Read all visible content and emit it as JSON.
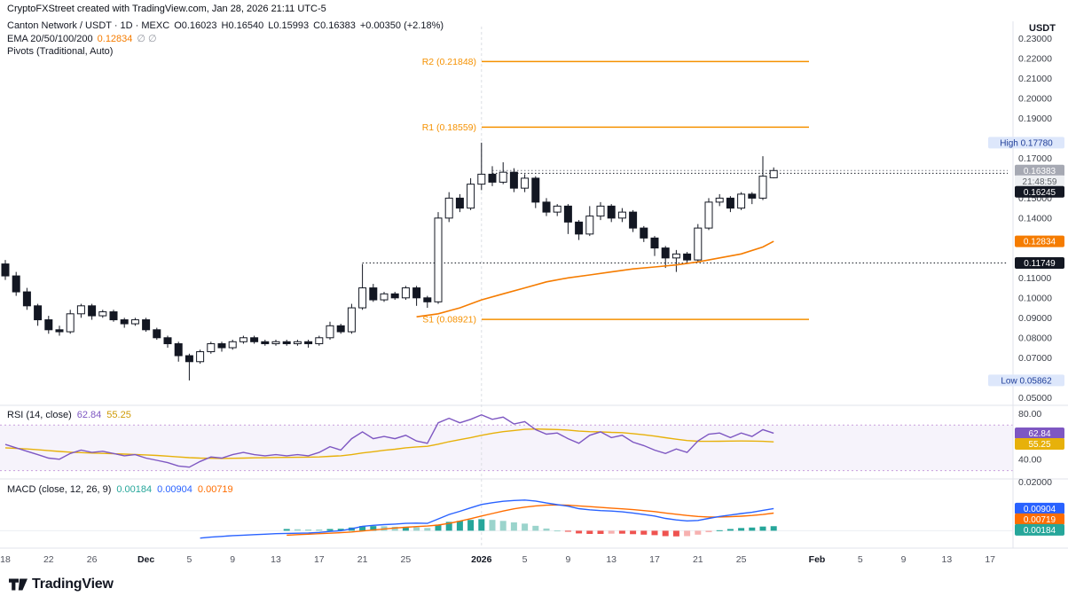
{
  "attribution": "CryptoFXStreet created with TradingView.com, Jan 28, 2026 21:11 UTC-5",
  "logo_text": "TradingView",
  "legend": {
    "symbol": "Canton Network / USDT · 1D · MEXC",
    "ohlc_o": "O0.16023",
    "ohlc_h": "H0.16540",
    "ohlc_l": "L0.15993",
    "ohlc_c": "C0.16383",
    "change": "+0.00350 (+2.18%)",
    "ema_label": "EMA 20/50/100/200",
    "ema_value": "0.12834",
    "ema_empty": "∅ ∅",
    "pivots_label": "Pivots (Traditional, Auto)",
    "rsi_label": "RSI (14, close)",
    "rsi_v1": "62.84",
    "rsi_v2": "55.25",
    "macd_label": "MACD (close, 12, 26, 9)",
    "macd_v1": "0.00184",
    "macd_v2": "0.00904",
    "macd_v3": "0.00719"
  },
  "axis": {
    "currency": "USDT",
    "price_ticks": [
      0.23,
      0.22,
      0.21,
      0.2,
      0.19,
      0.17,
      0.15,
      0.14,
      0.11,
      0.1,
      0.09,
      0.08,
      0.07,
      0.05
    ],
    "rsi_ticks": [
      80,
      40
    ],
    "macd_ticks": [
      0.02
    ],
    "main_badges": [
      {
        "kind": "range",
        "text": "High 0.17780",
        "price": 0.1778
      },
      {
        "kind": "last",
        "text": "0.16383",
        "price": 0.16383
      },
      {
        "kind": "countdown",
        "text": "21:48:59"
      },
      {
        "kind": "line",
        "text": "0.16245",
        "price": 0.16245
      },
      {
        "kind": "ema",
        "text": "0.12834",
        "price": 0.12834
      },
      {
        "kind": "line",
        "text": "0.11749",
        "price": 0.11749
      },
      {
        "kind": "range",
        "text": "Low 0.05862",
        "price": 0.05862
      }
    ],
    "rsi_badges": [
      {
        "text": "62.84",
        "value": 62.84,
        "color": "#7e57c2"
      },
      {
        "text": "55.25",
        "value": 55.25,
        "color": "#e7b10a"
      }
    ],
    "macd_badges": [
      {
        "text": "0.00904",
        "value": 0.00904,
        "color": "#2962ff"
      },
      {
        "text": "0.00719",
        "value": 0.00719,
        "color": "#ff6d00"
      },
      {
        "text": "0.00184",
        "value": 0.00184,
        "color": "#26a69a"
      }
    ],
    "time_ticks": [
      {
        "i": 0,
        "label": "18"
      },
      {
        "i": 4,
        "label": "22"
      },
      {
        "i": 8,
        "label": "26"
      },
      {
        "i": 13,
        "label": "Dec",
        "bold": true
      },
      {
        "i": 17,
        "label": "5"
      },
      {
        "i": 21,
        "label": "9"
      },
      {
        "i": 25,
        "label": "13"
      },
      {
        "i": 29,
        "label": "17"
      },
      {
        "i": 33,
        "label": "21"
      },
      {
        "i": 37,
        "label": "25"
      },
      {
        "i": 44,
        "label": "2026",
        "bold": true
      },
      {
        "i": 48,
        "label": "5"
      },
      {
        "i": 52,
        "label": "9"
      },
      {
        "i": 56,
        "label": "13"
      },
      {
        "i": 60,
        "label": "17"
      },
      {
        "i": 64,
        "label": "21"
      },
      {
        "i": 68,
        "label": "25"
      },
      {
        "i": 75,
        "label": "Feb",
        "bold": true
      },
      {
        "i": 79,
        "label": "5"
      },
      {
        "i": 83,
        "label": "9"
      },
      {
        "i": 87,
        "label": "13"
      },
      {
        "i": 91,
        "label": "17"
      }
    ]
  },
  "chart_data": {
    "type": "candlestick",
    "symbol": "Canton Network / USDT",
    "interval": "1D",
    "exchange": "MEXC",
    "last": {
      "open": 0.16023,
      "high": 0.1654,
      "low": 0.15993,
      "close": 0.16383,
      "change_abs": 0.0035,
      "change_pct": 2.18
    },
    "window": {
      "high": 0.1778,
      "low": 0.05862
    },
    "countdown": "21:48:59",
    "panes": {
      "main": {
        "range": [
          0.047,
          0.236
        ]
      },
      "rsi": {
        "range": [
          25,
          85
        ],
        "levels": [
          70,
          30
        ]
      },
      "macd": {
        "range": [
          -0.006,
          0.02
        ]
      }
    },
    "candles": [
      [
        0.117,
        0.119,
        0.109,
        0.111
      ],
      [
        0.111,
        0.113,
        0.101,
        0.103
      ],
      [
        0.103,
        0.105,
        0.094,
        0.096
      ],
      [
        0.096,
        0.097,
        0.086,
        0.089
      ],
      [
        0.089,
        0.091,
        0.082,
        0.084
      ],
      [
        0.084,
        0.086,
        0.081,
        0.083
      ],
      [
        0.083,
        0.094,
        0.082,
        0.092
      ],
      [
        0.092,
        0.097,
        0.09,
        0.096
      ],
      [
        0.096,
        0.097,
        0.089,
        0.091
      ],
      [
        0.091,
        0.094,
        0.09,
        0.093
      ],
      [
        0.093,
        0.094,
        0.088,
        0.089
      ],
      [
        0.089,
        0.09,
        0.085,
        0.087
      ],
      [
        0.087,
        0.09,
        0.086,
        0.089
      ],
      [
        0.089,
        0.09,
        0.083,
        0.084
      ],
      [
        0.084,
        0.085,
        0.079,
        0.08
      ],
      [
        0.08,
        0.081,
        0.075,
        0.077
      ],
      [
        0.077,
        0.078,
        0.068,
        0.071
      ],
      [
        0.071,
        0.072,
        0.0586,
        0.068
      ],
      [
        0.068,
        0.074,
        0.067,
        0.073
      ],
      [
        0.073,
        0.078,
        0.072,
        0.077
      ],
      [
        0.077,
        0.078,
        0.073,
        0.075
      ],
      [
        0.075,
        0.079,
        0.074,
        0.078
      ],
      [
        0.078,
        0.081,
        0.077,
        0.08
      ],
      [
        0.08,
        0.081,
        0.077,
        0.078
      ],
      [
        0.078,
        0.079,
        0.076,
        0.077
      ],
      [
        0.077,
        0.079,
        0.076,
        0.078
      ],
      [
        0.078,
        0.079,
        0.076,
        0.077
      ],
      [
        0.077,
        0.079,
        0.076,
        0.078
      ],
      [
        0.078,
        0.079,
        0.075,
        0.077
      ],
      [
        0.077,
        0.081,
        0.076,
        0.08
      ],
      [
        0.08,
        0.088,
        0.079,
        0.086
      ],
      [
        0.086,
        0.087,
        0.082,
        0.083
      ],
      [
        0.083,
        0.097,
        0.082,
        0.095
      ],
      [
        0.095,
        0.117,
        0.094,
        0.105
      ],
      [
        0.105,
        0.107,
        0.098,
        0.099
      ],
      [
        0.099,
        0.103,
        0.098,
        0.102
      ],
      [
        0.102,
        0.103,
        0.099,
        0.1
      ],
      [
        0.1,
        0.106,
        0.099,
        0.105
      ],
      [
        0.105,
        0.106,
        0.096,
        0.1
      ],
      [
        0.1,
        0.101,
        0.095,
        0.098
      ],
      [
        0.098,
        0.143,
        0.097,
        0.14
      ],
      [
        0.14,
        0.153,
        0.138,
        0.15
      ],
      [
        0.15,
        0.152,
        0.143,
        0.145
      ],
      [
        0.145,
        0.16,
        0.144,
        0.157
      ],
      [
        0.157,
        0.1778,
        0.154,
        0.162
      ],
      [
        0.162,
        0.166,
        0.156,
        0.158
      ],
      [
        0.158,
        0.168,
        0.157,
        0.163
      ],
      [
        0.163,
        0.165,
        0.153,
        0.155
      ],
      [
        0.155,
        0.162,
        0.153,
        0.16
      ],
      [
        0.16,
        0.161,
        0.145,
        0.148
      ],
      [
        0.148,
        0.15,
        0.141,
        0.143
      ],
      [
        0.143,
        0.147,
        0.141,
        0.146
      ],
      [
        0.146,
        0.147,
        0.132,
        0.138
      ],
      [
        0.138,
        0.139,
        0.129,
        0.132
      ],
      [
        0.132,
        0.146,
        0.131,
        0.141
      ],
      [
        0.141,
        0.148,
        0.139,
        0.146
      ],
      [
        0.146,
        0.147,
        0.138,
        0.14
      ],
      [
        0.14,
        0.145,
        0.138,
        0.143
      ],
      [
        0.143,
        0.144,
        0.133,
        0.135
      ],
      [
        0.135,
        0.136,
        0.128,
        0.13
      ],
      [
        0.13,
        0.131,
        0.121,
        0.125
      ],
      [
        0.125,
        0.126,
        0.115,
        0.12
      ],
      [
        0.12,
        0.124,
        0.113,
        0.122
      ],
      [
        0.122,
        0.123,
        0.117,
        0.119
      ],
      [
        0.119,
        0.137,
        0.118,
        0.135
      ],
      [
        0.135,
        0.15,
        0.134,
        0.148
      ],
      [
        0.148,
        0.152,
        0.146,
        0.15
      ],
      [
        0.15,
        0.151,
        0.143,
        0.145
      ],
      [
        0.145,
        0.153,
        0.144,
        0.152
      ],
      [
        0.152,
        0.153,
        0.147,
        0.15
      ],
      [
        0.15,
        0.171,
        0.149,
        0.161
      ],
      [
        0.16023,
        0.1654,
        0.15993,
        0.16383
      ]
    ],
    "ema_points": [
      [
        38,
        0.0905
      ],
      [
        40,
        0.092
      ],
      [
        42,
        0.095
      ],
      [
        44,
        0.099
      ],
      [
        46,
        0.102
      ],
      [
        48,
        0.105
      ],
      [
        50,
        0.108
      ],
      [
        52,
        0.11
      ],
      [
        54,
        0.1115
      ],
      [
        56,
        0.113
      ],
      [
        58,
        0.1145
      ],
      [
        60,
        0.1155
      ],
      [
        62,
        0.1165
      ],
      [
        64,
        0.118
      ],
      [
        66,
        0.12
      ],
      [
        68,
        0.122
      ],
      [
        70,
        0.1255
      ],
      [
        71,
        0.12834
      ]
    ],
    "ema_last": 0.12834,
    "pivots": [
      {
        "label": "R2 (0.21848)",
        "value": 0.21848
      },
      {
        "label": "R1 (0.18559)",
        "value": 0.18559
      },
      {
        "label": "S1 (0.08921)",
        "value": 0.08921
      }
    ],
    "price_lines": [
      {
        "value": 0.16383,
        "from": 45,
        "color": "#787b86"
      },
      {
        "value": 0.16245,
        "from": 45,
        "color": "#131722"
      },
      {
        "value": 0.11749,
        "from": 33,
        "color": "#131722"
      }
    ],
    "rsi": {
      "last": 62.84,
      "ma_last": 55.25,
      "values": [
        53,
        50,
        47,
        44,
        41,
        40,
        45,
        48,
        46,
        47,
        45,
        43,
        44,
        41,
        39,
        37,
        34,
        33,
        38,
        42,
        41,
        44,
        46,
        44,
        43,
        44,
        43,
        44,
        43,
        46,
        51,
        48,
        58,
        64,
        58,
        60,
        58,
        61,
        56,
        54,
        72,
        76,
        72,
        75,
        79,
        75,
        77,
        71,
        73,
        66,
        62,
        63,
        58,
        54,
        61,
        64,
        59,
        61,
        55,
        52,
        48,
        45,
        49,
        46,
        56,
        62,
        63,
        59,
        63,
        60,
        66,
        62.84
      ],
      "ma": [
        50,
        49.5,
        49,
        48.3,
        47.5,
        46.8,
        46.2,
        45.8,
        45.4,
        45.1,
        44.8,
        44.5,
        44.2,
        43.8,
        43.3,
        42.7,
        42,
        41.4,
        41,
        40.8,
        40.7,
        40.8,
        41,
        41.2,
        41.3,
        41.5,
        41.6,
        41.7,
        41.8,
        42,
        42.5,
        43,
        44,
        45.5,
        46.6,
        47.8,
        48.8,
        50,
        50.8,
        51.3,
        53.2,
        55.4,
        57.2,
        59,
        61,
        62.7,
        64.2,
        65.2,
        66.2,
        66.5,
        66.3,
        66.1,
        65.6,
        64.7,
        64.2,
        64,
        63.6,
        63.3,
        62.5,
        61.5,
        60.3,
        58.9,
        57.6,
        56.4,
        55.8,
        55.7,
        55.8,
        55.9,
        56,
        55.9,
        55.7,
        55.25
      ]
    },
    "macd": {
      "last_hist": 0.00184,
      "last_line": 0.00904,
      "last_signal": 0.00719,
      "line": [
        null,
        null,
        null,
        null,
        null,
        null,
        null,
        null,
        null,
        null,
        null,
        null,
        null,
        null,
        null,
        null,
        null,
        null,
        -0.003,
        -0.0026,
        -0.0023,
        -0.002,
        -0.0018,
        -0.0016,
        -0.0014,
        -0.0012,
        -0.0011,
        -0.001,
        -0.0009,
        -0.0007,
        -0.0003,
        0.0,
        0.0008,
        0.0018,
        0.0022,
        0.0025,
        0.0027,
        0.003,
        0.0031,
        0.003,
        0.0048,
        0.0066,
        0.0079,
        0.0093,
        0.0107,
        0.0114,
        0.012,
        0.0123,
        0.0125,
        0.0121,
        0.0113,
        0.0106,
        0.01,
        0.009,
        0.0085,
        0.0082,
        0.008,
        0.0077,
        0.0072,
        0.0066,
        0.006,
        0.005,
        0.0044,
        0.004,
        0.0042,
        0.005,
        0.0058,
        0.0064,
        0.007,
        0.0075,
        0.0083,
        0.00904
      ],
      "signal": [
        null,
        null,
        null,
        null,
        null,
        null,
        null,
        null,
        null,
        null,
        null,
        null,
        null,
        null,
        null,
        null,
        null,
        null,
        null,
        null,
        null,
        null,
        null,
        null,
        null,
        null,
        -0.0018,
        -0.0016,
        -0.0014,
        -0.0012,
        -0.001,
        -0.0008,
        -0.0005,
        -0.0001,
        0.0003,
        0.0007,
        0.0011,
        0.0014,
        0.0017,
        0.0019,
        0.0023,
        0.003,
        0.0039,
        0.0049,
        0.006,
        0.007,
        0.008,
        0.0089,
        0.0096,
        0.0101,
        0.0104,
        0.0105,
        0.0104,
        0.0101,
        0.0098,
        0.0095,
        0.0092,
        0.0089,
        0.0086,
        0.0082,
        0.0078,
        0.0072,
        0.0067,
        0.0062,
        0.0058,
        0.0056,
        0.0056,
        0.0057,
        0.0059,
        0.0062,
        0.0066,
        0.00719
      ]
    },
    "colors": {
      "up_fill": "#ffffff",
      "down_fill": "#131722",
      "candle_border": "#131722",
      "ema": "#f57c00",
      "pivot": "#f59100",
      "rsi": "#7e57c2",
      "rsi_ma": "#e7b10a",
      "rsi_band_fill": "rgba(126,87,194,0.07)",
      "rsi_band_line": "#c9a0dd",
      "macd_line": "#2962ff",
      "macd_signal": "#ff6d00",
      "hist_grow_up": "#26a69a",
      "hist_fall_up": "#9bd4cc",
      "hist_fall_dn": "#ef5350",
      "hist_grow_dn": "#f7b1b0"
    }
  }
}
